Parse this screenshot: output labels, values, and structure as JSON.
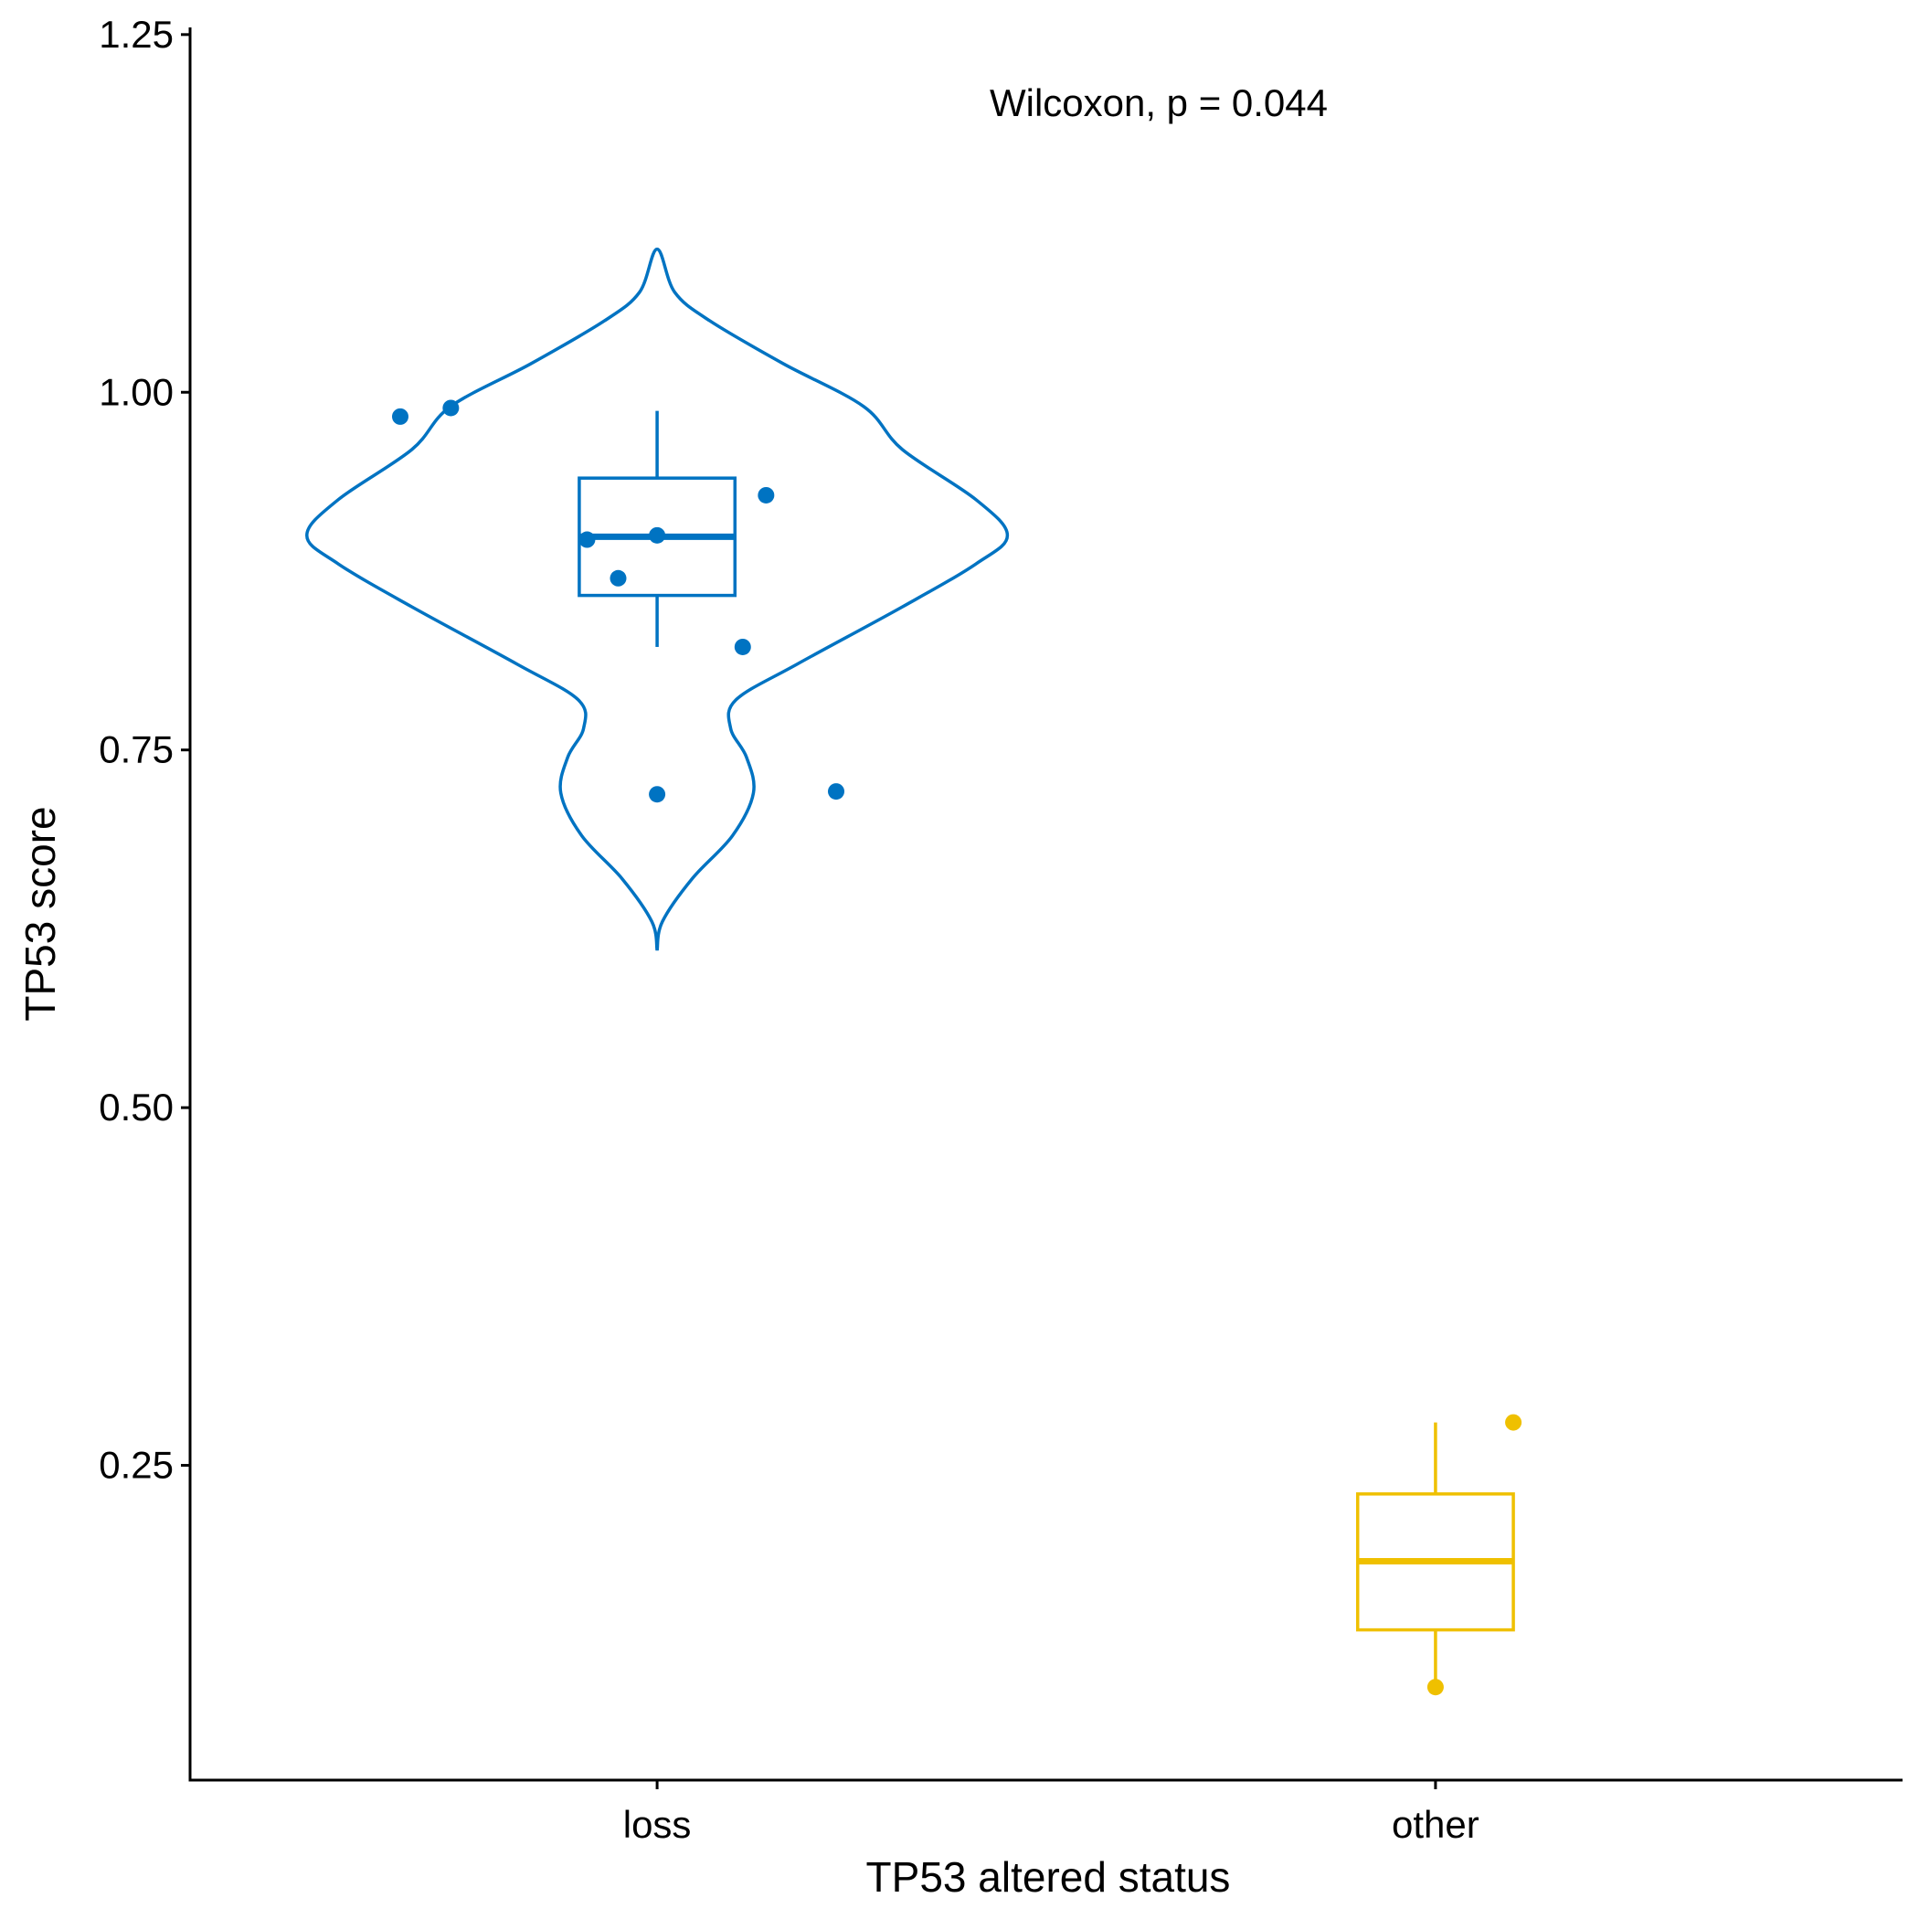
{
  "chart_data": {
    "type": "violin",
    "xlabel": "TP53 altered status",
    "ylabel": "TP53 score",
    "ylim": [
      0.03,
      1.255
    ],
    "yticks": [
      0.25,
      0.5,
      0.75,
      1.0,
      1.25
    ],
    "ytick_labels": [
      "0.25",
      "0.50",
      "0.75",
      "1.00",
      "1.25"
    ],
    "categories": [
      "loss",
      "other"
    ],
    "annotation": "Wilcoxon, p = 0.044",
    "grid": false,
    "legend": "none",
    "groups": [
      {
        "category": "loss",
        "color": "#0073C2",
        "box": {
          "whisker_low": 0.822,
          "q1": 0.858,
          "median": 0.899,
          "q3": 0.94,
          "whisker_high": 0.987
        },
        "points": [
          {
            "x_offset": -0.33,
            "y": 0.983
          },
          {
            "x_offset": -0.265,
            "y": 0.989
          },
          {
            "x_offset": 0.14,
            "y": 0.928
          },
          {
            "x_offset": -0.09,
            "y": 0.897
          },
          {
            "x_offset": 0.0,
            "y": 0.9
          },
          {
            "x_offset": -0.05,
            "y": 0.87
          },
          {
            "x_offset": 0.11,
            "y": 0.822
          },
          {
            "x_offset": 0.0,
            "y": 0.719
          },
          {
            "x_offset": 0.23,
            "y": 0.721
          }
        ],
        "violin": [
          {
            "y": 0.61,
            "w": 0.0
          },
          {
            "y": 0.63,
            "w": 0.015
          },
          {
            "y": 0.66,
            "w": 0.1
          },
          {
            "y": 0.69,
            "w": 0.215
          },
          {
            "y": 0.72,
            "w": 0.275
          },
          {
            "y": 0.745,
            "w": 0.255
          },
          {
            "y": 0.765,
            "w": 0.21
          },
          {
            "y": 0.785,
            "w": 0.225
          },
          {
            "y": 0.81,
            "w": 0.4
          },
          {
            "y": 0.85,
            "w": 0.7
          },
          {
            "y": 0.88,
            "w": 0.91
          },
          {
            "y": 0.9,
            "w": 1.0
          },
          {
            "y": 0.925,
            "w": 0.91
          },
          {
            "y": 0.96,
            "w": 0.7
          },
          {
            "y": 0.99,
            "w": 0.59
          },
          {
            "y": 1.02,
            "w": 0.36
          },
          {
            "y": 1.05,
            "w": 0.15
          },
          {
            "y": 1.07,
            "w": 0.05
          },
          {
            "y": 1.1,
            "w": 0.0
          }
        ]
      },
      {
        "category": "other",
        "color": "#EFC000",
        "box": {
          "whisker_low": 0.098,
          "q1": 0.135,
          "median": 0.183,
          "q3": 0.23,
          "whisker_high": 0.28
        },
        "points": [
          {
            "x_offset": 0.1,
            "y": 0.28
          },
          {
            "x_offset": 0.0,
            "y": 0.095
          }
        ],
        "violin": []
      }
    ]
  }
}
